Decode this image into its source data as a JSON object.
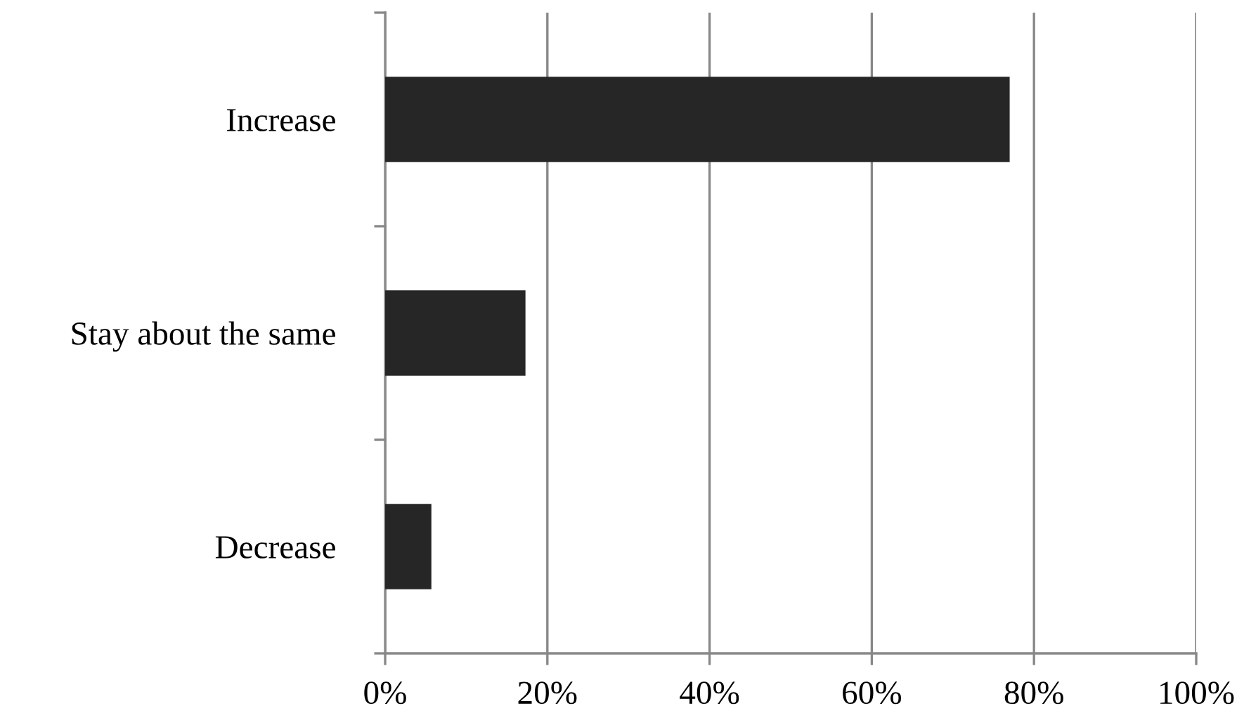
{
  "chart_data": {
    "type": "bar",
    "orientation": "horizontal",
    "categories": [
      "Increase",
      "Stay about the same",
      "Decrease"
    ],
    "values": [
      77.0,
      17.3,
      5.7
    ],
    "color": "#262626",
    "xlim": [
      0,
      100
    ],
    "xticks": [
      {
        "value": 0,
        "label": "0%"
      },
      {
        "value": 20,
        "label": "20%"
      },
      {
        "value": 40,
        "label": "40%"
      },
      {
        "value": 60,
        "label": "60%"
      },
      {
        "value": 80,
        "label": "80%"
      },
      {
        "value": 100,
        "label": "100%"
      }
    ],
    "grid": "x"
  }
}
